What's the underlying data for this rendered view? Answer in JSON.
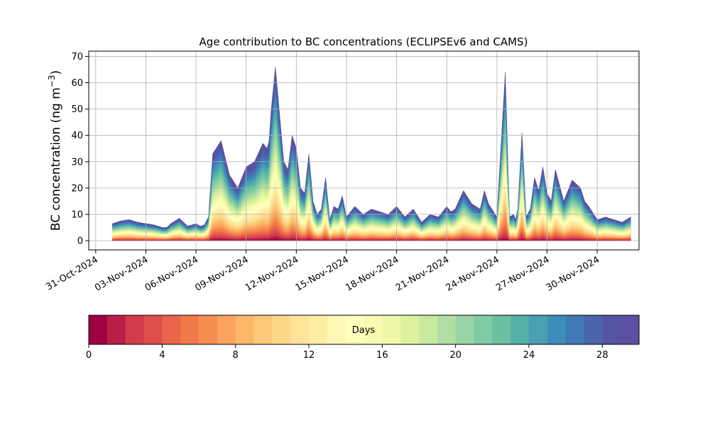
{
  "chart_data": {
    "type": "area",
    "title": "Age contribution to BC concentrations (ECLIPSEv6 and CAMS)",
    "ylabel": "BC concentration (ng m",
    "ylabel_sup": "−3",
    "ylabel_close": ")",
    "xlabel": "",
    "stacking": "stacked by tracer age (days)",
    "grid": true,
    "x_range": [
      "2024-10-30T14:00",
      "2024-12-02T12:00"
    ],
    "ylim": [
      -3.5,
      72
    ],
    "y_ticks": [
      0,
      10,
      20,
      30,
      40,
      50,
      60,
      70
    ],
    "x_ticks": [
      "31-Oct-2024",
      "03-Nov-2024",
      "06-Nov-2024",
      "09-Nov-2024",
      "12-Nov-2024",
      "15-Nov-2024",
      "18-Nov-2024",
      "21-Nov-2024",
      "24-Nov-2024",
      "27-Nov-2024",
      "30-Nov-2024"
    ],
    "x_tick_dates": [
      "2024-10-31",
      "2024-11-03",
      "2024-11-06",
      "2024-11-09",
      "2024-11-12",
      "2024-11-15",
      "2024-11-18",
      "2024-11-21",
      "2024-11-24",
      "2024-11-27",
      "2024-11-30"
    ],
    "total": {
      "x": [
        "2024-11-01T00:00",
        "2024-11-01T12:00",
        "2024-11-02T00:00",
        "2024-11-02T12:00",
        "2024-11-03T00:00",
        "2024-11-03T12:00",
        "2024-11-04T00:00",
        "2024-11-04T06:00",
        "2024-11-04T12:00",
        "2024-11-05T00:00",
        "2024-11-05T12:00",
        "2024-11-06T00:00",
        "2024-11-06T06:00",
        "2024-11-06T12:00",
        "2024-11-06T18:00",
        "2024-11-07T00:00",
        "2024-11-07T12:00",
        "2024-11-08T00:00",
        "2024-11-08T12:00",
        "2024-11-09T00:00",
        "2024-11-09T12:00",
        "2024-11-10T00:00",
        "2024-11-10T03:00",
        "2024-11-10T06:00",
        "2024-11-10T09:00",
        "2024-11-10T12:00",
        "2024-11-10T18:00",
        "2024-11-11T00:00",
        "2024-11-11T06:00",
        "2024-11-11T12:00",
        "2024-11-11T18:00",
        "2024-11-12T00:00",
        "2024-11-12T06:00",
        "2024-11-12T12:00",
        "2024-11-12T18:00",
        "2024-11-13T00:00",
        "2024-11-13T06:00",
        "2024-11-13T12:00",
        "2024-11-13T18:00",
        "2024-11-14T00:00",
        "2024-11-14T06:00",
        "2024-11-14T12:00",
        "2024-11-14T18:00",
        "2024-11-15T00:00",
        "2024-11-15T12:00",
        "2024-11-16T00:00",
        "2024-11-16T12:00",
        "2024-11-17T00:00",
        "2024-11-17T12:00",
        "2024-11-18T00:00",
        "2024-11-18T12:00",
        "2024-11-19T00:00",
        "2024-11-19T12:00",
        "2024-11-20T00:00",
        "2024-11-20T12:00",
        "2024-11-21T00:00",
        "2024-11-21T06:00",
        "2024-11-21T12:00",
        "2024-11-22T00:00",
        "2024-11-22T12:00",
        "2024-11-23T00:00",
        "2024-11-23T06:00",
        "2024-11-23T12:00",
        "2024-11-24T00:00",
        "2024-11-24T12:00",
        "2024-11-24T18:00",
        "2024-11-25T00:00",
        "2024-11-25T03:00",
        "2024-11-25T06:00",
        "2024-11-25T12:00",
        "2024-11-25T18:00",
        "2024-11-26T00:00",
        "2024-11-26T06:00",
        "2024-11-26T12:00",
        "2024-11-26T18:00",
        "2024-11-27T00:00",
        "2024-11-27T06:00",
        "2024-11-27T12:00",
        "2024-11-28T00:00",
        "2024-11-28T12:00",
        "2024-11-29T00:00",
        "2024-11-29T06:00",
        "2024-11-29T12:00",
        "2024-11-30T00:00",
        "2024-11-30T12:00",
        "2024-12-01T00:00",
        "2024-12-01T12:00",
        "2024-12-02T00:00"
      ],
      "y": [
        6.5,
        7.5,
        8,
        7,
        6.5,
        6,
        5,
        5,
        6.5,
        8.5,
        5.5,
        6.5,
        5.5,
        6,
        9,
        33,
        38,
        25,
        20,
        28,
        30,
        37,
        36,
        35,
        38,
        50,
        66,
        48,
        30,
        27,
        40,
        35,
        20,
        18,
        33,
        15,
        10,
        12,
        24,
        8,
        13,
        12,
        17,
        9,
        13,
        10,
        12,
        11,
        10,
        13,
        9,
        12,
        7,
        10,
        9,
        13,
        11,
        12,
        19,
        14,
        12,
        19,
        14,
        9,
        64,
        9,
        10,
        8,
        12,
        41,
        9,
        12,
        24,
        19,
        28,
        18,
        15,
        27,
        15,
        23,
        20,
        15,
        13,
        8,
        9,
        8,
        7,
        9
      ]
    },
    "color_scale": {
      "label": "Days",
      "min": 0,
      "max": 30,
      "ticks": [
        0,
        4,
        8,
        12,
        16,
        20,
        24,
        28
      ],
      "colors": [
        "#9e0142",
        "#b81e48",
        "#d13c4b",
        "#de4e4a",
        "#e8644a",
        "#f07b49",
        "#f68e52",
        "#fba35c",
        "#fdb768",
        "#fdc877",
        "#fdd888",
        "#fee49a",
        "#feeda2",
        "#fff8b4",
        "#fefebd",
        "#f8fcb3",
        "#eef8a8",
        "#def29d",
        "#c9e99f",
        "#b1dea2",
        "#99d4a4",
        "#7fcba4",
        "#6bbfa3",
        "#56b1a8",
        "#4a9fb1",
        "#3e8cba",
        "#3f79b6",
        "#4a65ab",
        "#5654a2",
        "#5e4fa2"
      ]
    }
  }
}
